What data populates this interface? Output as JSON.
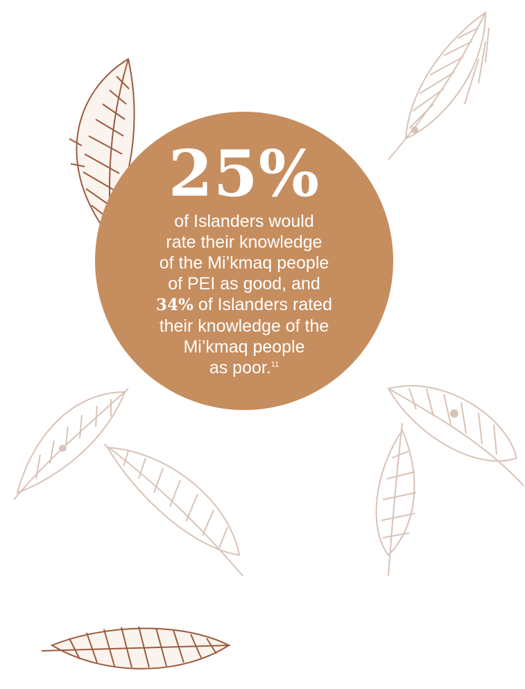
{
  "stat": {
    "big_value": "25%",
    "lines": [
      "of Islanders would",
      "rate their knowledge",
      "of the Mi’kmaq people",
      "of PEI as good, and"
    ],
    "second_value": "34%",
    "line5_rest": " of Islanders rated",
    "lines_after": [
      "their knowledge of the",
      "Mi’kmaq people"
    ],
    "last_line": "as poor.",
    "footnote": "11"
  },
  "colors": {
    "circle": "#c68d5e",
    "feather_dark": "#9a5a3c",
    "feather_light": "#d9c2b6"
  },
  "icons": [
    "feather-icon"
  ]
}
